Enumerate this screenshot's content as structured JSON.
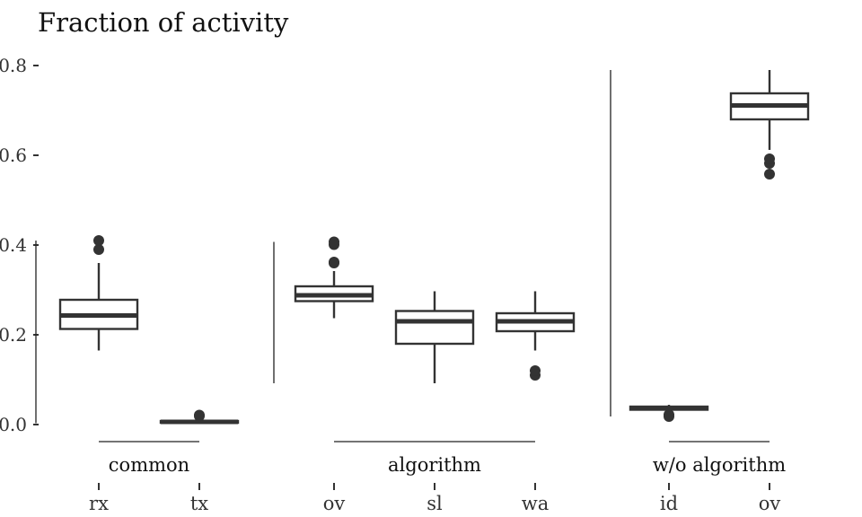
{
  "chart_data": {
    "type": "boxplot",
    "title": "Fraction of activity",
    "xlabel": "",
    "ylabel": "",
    "ylim": [
      0,
      0.8
    ],
    "yticks": [
      0.0,
      0.2,
      0.4,
      0.6,
      0.8
    ],
    "ytick_labels": [
      "0.0",
      "0.2",
      "0.4",
      "0.6",
      "0.8"
    ],
    "grid": false,
    "legend": "none",
    "color": "#333333",
    "groups": [
      {
        "label": "common",
        "boxes": [
          {
            "category": "rx",
            "whisker_low": 0.165,
            "q1": 0.213,
            "median": 0.243,
            "q3": 0.278,
            "whisker_high": 0.36,
            "outliers": [
              0.39,
              0.41
            ]
          },
          {
            "category": "tx",
            "whisker_low": 0.003,
            "q1": 0.004,
            "median": 0.006,
            "q3": 0.008,
            "whisker_high": 0.012,
            "outliers": [
              0.019,
              0.021
            ]
          }
        ]
      },
      {
        "label": "algorithm",
        "boxes": [
          {
            "category": "ov",
            "whisker_low": 0.237,
            "q1": 0.275,
            "median": 0.288,
            "q3": 0.308,
            "whisker_high": 0.342,
            "outliers": [
              0.36,
              0.362,
              0.401,
              0.407
            ]
          },
          {
            "category": "sl",
            "whisker_low": 0.092,
            "q1": 0.18,
            "median": 0.23,
            "q3": 0.253,
            "whisker_high": 0.297,
            "outliers": []
          },
          {
            "category": "wa",
            "whisker_low": 0.165,
            "q1": 0.208,
            "median": 0.23,
            "q3": 0.248,
            "whisker_high": 0.297,
            "outliers": [
              0.11,
              0.12
            ]
          }
        ]
      },
      {
        "label": "w/o algorithm",
        "boxes": [
          {
            "category": "id",
            "whisker_low": 0.029,
            "q1": 0.033,
            "median": 0.037,
            "q3": 0.04,
            "whisker_high": 0.044,
            "outliers": [
              0.018,
              0.022
            ]
          },
          {
            "category": "ov",
            "whisker_low": 0.612,
            "q1": 0.68,
            "median": 0.711,
            "q3": 0.738,
            "whisker_high": 0.79,
            "outliers": [
              0.558,
              0.582,
              0.592
            ]
          }
        ]
      }
    ]
  }
}
